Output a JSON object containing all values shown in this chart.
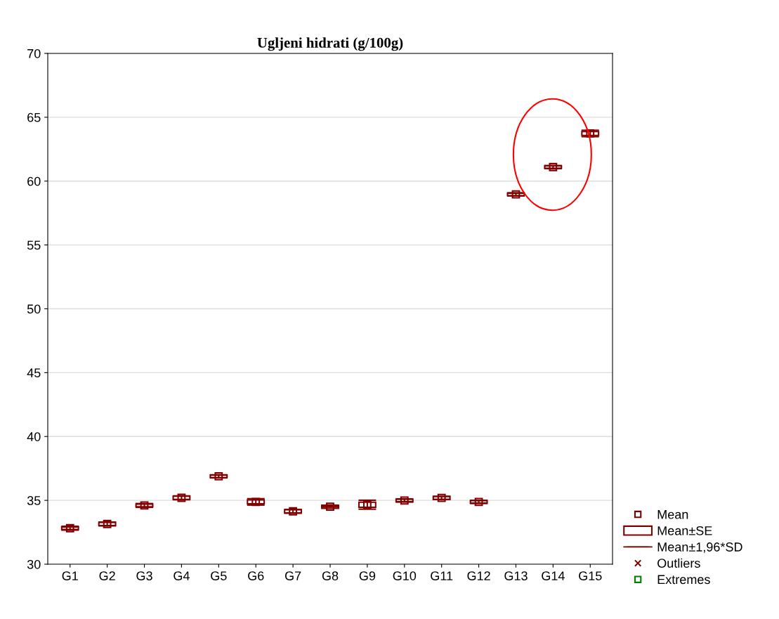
{
  "chart_data": {
    "type": "scatter",
    "title": "Ugljeni hidrati (g/100g)",
    "categories": [
      "G1",
      "G2",
      "G3",
      "G4",
      "G5",
      "G6",
      "G7",
      "G8",
      "G9",
      "G10",
      "G11",
      "G12",
      "G13",
      "G14",
      "G15"
    ],
    "series": [
      {
        "name": "Mean",
        "marker": "square",
        "color": "#800000",
        "values": [
          32.82,
          33.15,
          34.6,
          35.2,
          36.88,
          34.88,
          34.14,
          34.5,
          34.66,
          34.99,
          35.19,
          34.88,
          58.96,
          61.1,
          63.73
        ],
        "errors": [
          0.15,
          0.15,
          0.15,
          0.15,
          0.12,
          0.25,
          0.15,
          null,
          0.35,
          0.12,
          0.12,
          0.12,
          0.12,
          0.12,
          0.25
        ]
      },
      {
        "name": "Mean±SE",
        "type": "bar",
        "color": "#800000",
        "base": [
          32.72,
          33.03,
          34.5,
          35.08,
          36.78,
          34.73,
          34.02,
          34.38,
          34.46,
          34.89,
          35.07,
          34.78,
          58.86,
          61.0,
          63.58
        ],
        "values": [
          0.2,
          0.24,
          0.2,
          0.24,
          0.2,
          0.3,
          0.24,
          0.24,
          0.4,
          0.2,
          0.24,
          0.2,
          0.2,
          0.2,
          0.3
        ]
      },
      {
        "name": "Mean±1,96*SD",
        "type": "scatter",
        "marker": "none",
        "color": "#800000",
        "values": [
          null,
          null,
          null,
          null,
          null,
          null,
          null,
          null,
          null,
          null,
          null,
          null,
          null,
          null,
          null
        ]
      },
      {
        "name": "Outliers",
        "type": "scatter",
        "marker": "cross",
        "color": "#800000",
        "values": [
          null,
          null,
          null,
          null,
          null,
          null,
          null,
          null,
          null,
          null,
          null,
          null,
          null,
          null,
          null
        ]
      },
      {
        "name": "Extremes",
        "type": "scatter",
        "marker": "square",
        "color": "#008000",
        "values": [
          null,
          null,
          null,
          null,
          null,
          null,
          null,
          null,
          null,
          null,
          null,
          null,
          null,
          null,
          null
        ]
      }
    ],
    "ylim": [
      30,
      70
    ],
    "yticks": [
      30,
      35,
      40,
      45,
      50,
      55,
      60,
      65,
      70
    ],
    "grid": "y",
    "legend": "bottom right"
  }
}
